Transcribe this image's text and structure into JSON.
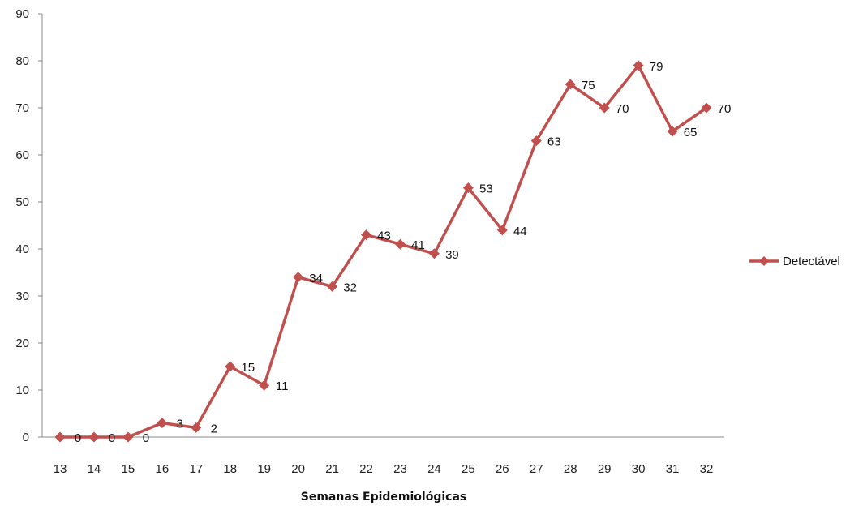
{
  "chart_data": {
    "type": "line",
    "xlabel": "Semanas Epidemiológicas",
    "ylabel": "",
    "ylim": [
      0,
      90
    ],
    "yticks": [
      0,
      10,
      20,
      30,
      40,
      50,
      60,
      70,
      80,
      90
    ],
    "categories": [
      "13",
      "14",
      "15",
      "16",
      "17",
      "18",
      "19",
      "20",
      "21",
      "22",
      "23",
      "24",
      "25",
      "26",
      "27",
      "28",
      "29",
      "30",
      "31",
      "32"
    ],
    "series": [
      {
        "name": "Detectável",
        "color": "#c0504d",
        "marker": "diamond",
        "values": [
          0,
          0,
          0,
          3,
          2,
          15,
          11,
          34,
          32,
          43,
          41,
          39,
          53,
          44,
          63,
          75,
          70,
          79,
          65,
          70
        ]
      }
    ],
    "data_labels": true,
    "grid": false,
    "legend_position": "right"
  }
}
